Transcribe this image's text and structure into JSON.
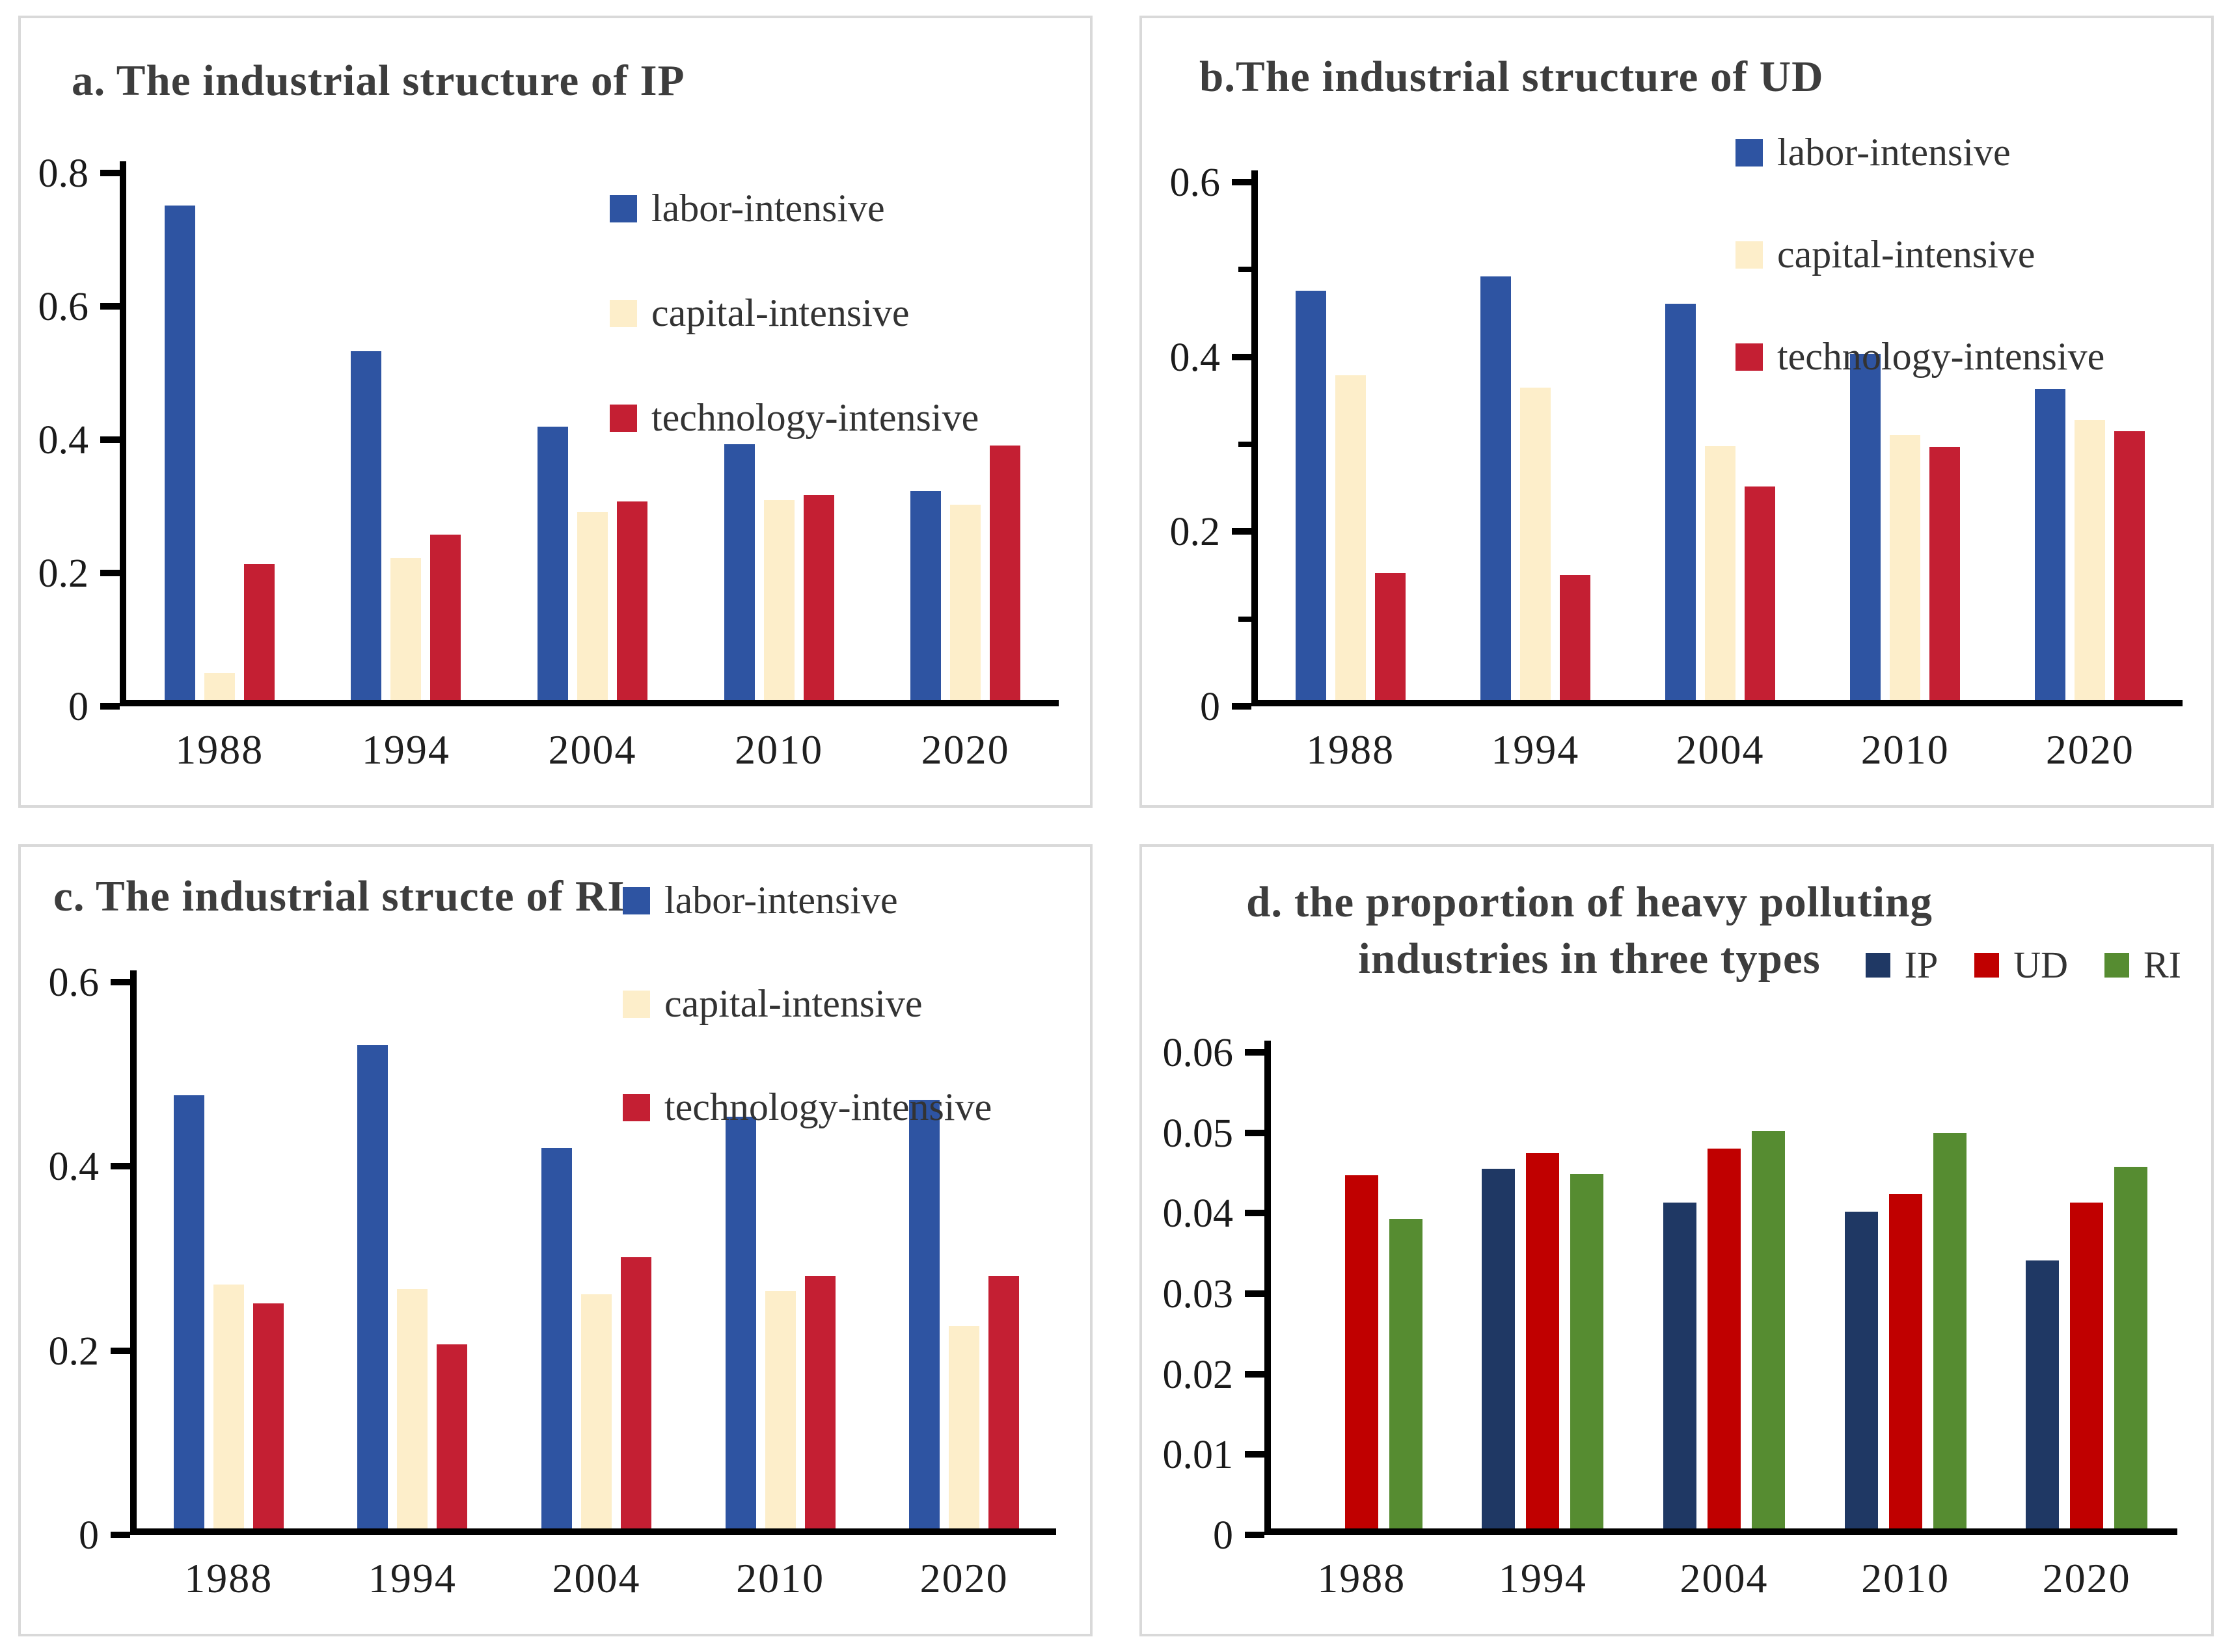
{
  "figure": {
    "background": "#ffffff",
    "panel_border_color": "#d9d9d9",
    "axis_color": "#000000",
    "title_color": "#3d3d3d",
    "tick_label_color": "#1a1a1a"
  },
  "chart_data": [
    {
      "id": "a",
      "type": "bar",
      "title": "a. The industrial structure of IP",
      "categories": [
        "1988",
        "1994",
        "2004",
        "2010",
        "2020"
      ],
      "series": [
        {
          "name": "labor-intensive",
          "color": "#2e54a2",
          "values": [
            0.751,
            0.529,
            0.415,
            0.388,
            0.317
          ]
        },
        {
          "name": "capital-intensive",
          "color": "#fdeeca",
          "values": [
            0.041,
            0.215,
            0.285,
            0.303,
            0.296
          ]
        },
        {
          "name": "technology-intensive",
          "color": "#c41f33",
          "values": [
            0.206,
            0.251,
            0.301,
            0.311,
            0.386
          ]
        }
      ],
      "xlabel": "",
      "ylabel": "",
      "ylim": [
        0,
        0.8
      ],
      "yticks": [
        {
          "value": 0,
          "label": "0"
        },
        {
          "value": 0.2,
          "label": "0.2"
        },
        {
          "value": 0.4,
          "label": "0.4"
        },
        {
          "value": 0.6,
          "label": "0.6"
        },
        {
          "value": 0.8,
          "label": "0.8"
        }
      ],
      "grid": false,
      "legend_position": "upper-right-vertical"
    },
    {
      "id": "b",
      "type": "bar",
      "title": "b.The industrial structure of UD",
      "categories": [
        "1988",
        "1994",
        "2004",
        "2010",
        "2020"
      ],
      "series": [
        {
          "name": "labor-intensive",
          "color": "#2e54a2",
          "values": [
            0.474,
            0.491,
            0.459,
            0.401,
            0.36
          ]
        },
        {
          "name": "capital-intensive",
          "color": "#fdeeca",
          "values": [
            0.376,
            0.362,
            0.294,
            0.307,
            0.324
          ]
        },
        {
          "name": "technology-intensive",
          "color": "#c41f33",
          "values": [
            0.147,
            0.145,
            0.247,
            0.293,
            0.311
          ]
        }
      ],
      "xlabel": "",
      "ylabel": "",
      "ylim": [
        0,
        0.6
      ],
      "yticks": [
        {
          "value": 0,
          "label": "0"
        },
        {
          "value": 0.1,
          "label": "",
          "minor": true
        },
        {
          "value": 0.2,
          "label": "0.2"
        },
        {
          "value": 0.3,
          "label": "",
          "minor": true
        },
        {
          "value": 0.4,
          "label": "0.4"
        },
        {
          "value": 0.5,
          "label": "",
          "minor": true
        },
        {
          "value": 0.6,
          "label": "0.6"
        }
      ],
      "grid": false,
      "legend_position": "upper-right-vertical"
    },
    {
      "id": "c",
      "type": "bar",
      "title": "c. The industrial structe of RI",
      "categories": [
        "1988",
        "1994",
        "2004",
        "2010",
        "2020"
      ],
      "series": [
        {
          "name": "labor-intensive",
          "color": "#2e54a2",
          "values": [
            0.476,
            0.531,
            0.418,
            0.452,
            0.471
          ]
        },
        {
          "name": "capital-intensive",
          "color": "#fdeeca",
          "values": [
            0.268,
            0.263,
            0.257,
            0.261,
            0.222
          ]
        },
        {
          "name": "technology-intensive",
          "color": "#c41f33",
          "values": [
            0.247,
            0.202,
            0.298,
            0.277,
            0.277
          ]
        }
      ],
      "xlabel": "",
      "ylabel": "",
      "ylim": [
        0,
        0.6
      ],
      "yticks": [
        {
          "value": 0,
          "label": "0"
        },
        {
          "value": 0.2,
          "label": "0.2"
        },
        {
          "value": 0.4,
          "label": "0.4"
        },
        {
          "value": 0.6,
          "label": "0.6"
        }
      ],
      "grid": false,
      "legend_position": "upper-right-vertical"
    },
    {
      "id": "d",
      "type": "bar",
      "title": "d. the proportion of  heavy polluting industries in three types",
      "categories": [
        "1988",
        "1994",
        "2004",
        "2010",
        "2020"
      ],
      "series": [
        {
          "name": "IP",
          "color": "#1f3864",
          "values": [
            null,
            0.0453,
            0.0411,
            0.0399,
            0.0338
          ]
        },
        {
          "name": "UD",
          "color": "#c00000",
          "values": [
            0.0445,
            0.0473,
            0.0479,
            0.0421,
            0.0411
          ]
        },
        {
          "name": "RI",
          "color": "#568c31",
          "values": [
            0.039,
            0.0447,
            0.0501,
            0.0498,
            0.0456
          ]
        }
      ],
      "xlabel": "",
      "ylabel": "",
      "ylim": [
        0,
        0.06
      ],
      "yticks": [
        {
          "value": 0,
          "label": "0"
        },
        {
          "value": 0.01,
          "label": "0.01"
        },
        {
          "value": 0.02,
          "label": "0.02"
        },
        {
          "value": 0.03,
          "label": "0.03"
        },
        {
          "value": 0.04,
          "label": "0.04"
        },
        {
          "value": 0.05,
          "label": "0.05"
        },
        {
          "value": 0.06,
          "label": "0.06"
        }
      ],
      "grid": false,
      "legend_position": "top-right-horizontal"
    }
  ]
}
